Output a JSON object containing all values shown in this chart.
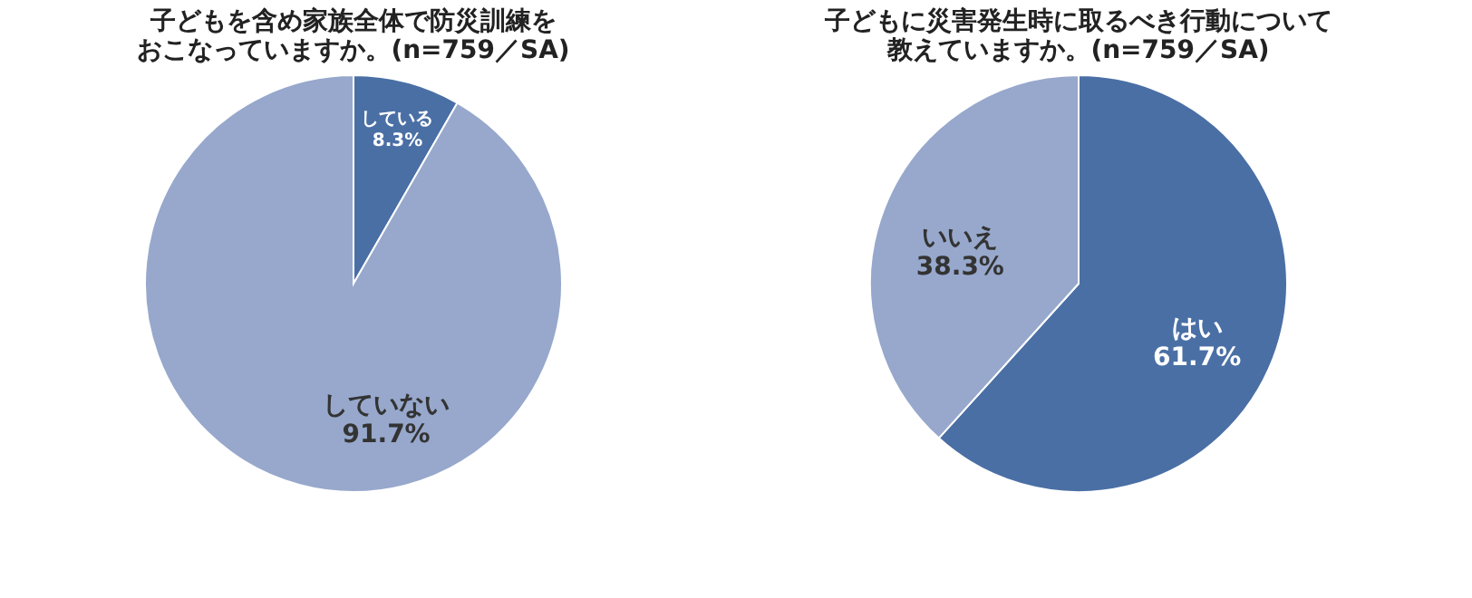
{
  "chart_data": [
    {
      "type": "pie",
      "title": [
        "子どもを含め家族全体で防災訓練を",
        "おこなっていますか。(n=759／SA)"
      ],
      "categories": [
        "している",
        "していない"
      ],
      "values": [
        8.3,
        91.7
      ],
      "colors": [
        "#4a6fa5",
        "#97a8cc"
      ],
      "value_labels": [
        "8.3%",
        "91.7%"
      ]
    },
    {
      "type": "pie",
      "title": [
        "子どもに災害発生時に取るべき行動について",
        "教えていますか。(n=759／SA)"
      ],
      "categories": [
        "はい",
        "いいえ"
      ],
      "values": [
        61.7,
        38.3
      ],
      "colors": [
        "#4a6fa5",
        "#97a8cc"
      ],
      "value_labels": [
        "61.7%",
        "38.3%"
      ]
    }
  ]
}
